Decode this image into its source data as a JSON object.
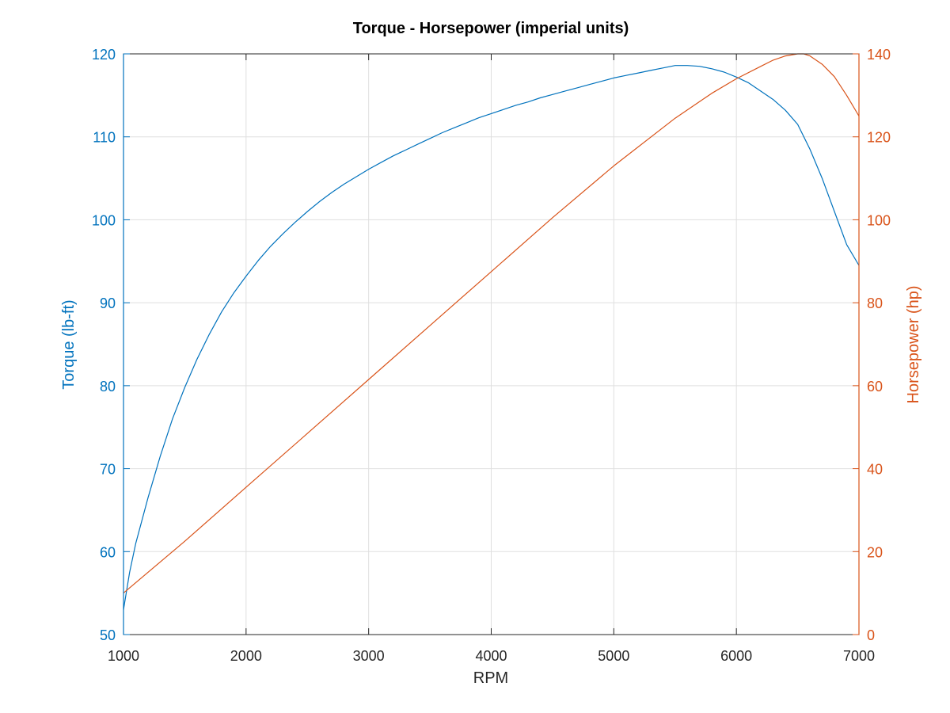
{
  "chart_data": {
    "type": "line",
    "title": "Torque - Horsepower (imperial units)",
    "xlabel": "RPM",
    "ylabel_left": "Torque (lb-ft)",
    "ylabel_right": "Horsepower (hp)",
    "xlim": [
      1000,
      7000
    ],
    "ylim_left": [
      50,
      120
    ],
    "ylim_right": [
      0,
      140
    ],
    "xticks": [
      "1000",
      "2000",
      "3000",
      "4000",
      "5000",
      "6000",
      "7000"
    ],
    "yticks_left": [
      "50",
      "60",
      "70",
      "80",
      "90",
      "100",
      "110",
      "120"
    ],
    "yticks_right": [
      "0",
      "20",
      "40",
      "60",
      "80",
      "100",
      "120",
      "140"
    ],
    "grid": true,
    "colors": {
      "torque": "#0072bd",
      "horsepower": "#d95319"
    },
    "series": [
      {
        "axis": "left",
        "x": [
          1000,
          1050,
          1100,
          1200,
          1300,
          1400,
          1500,
          1600,
          1700,
          1800,
          1900,
          2000,
          2100,
          2200,
          2300,
          2400,
          2500,
          2600,
          2700,
          2800,
          2900,
          3000,
          3100,
          3200,
          3300,
          3400,
          3500,
          3600,
          3700,
          3800,
          3900,
          4000,
          4100,
          4200,
          4300,
          4400,
          4500,
          4600,
          4700,
          4800,
          4900,
          5000,
          5100,
          5200,
          5300,
          5400,
          5500,
          5600,
          5700,
          5800,
          5900,
          6000,
          6100,
          6200,
          6300,
          6400,
          6500,
          6600,
          6700,
          6800,
          6900,
          7000
        ],
        "values": [
          53.0,
          57.5,
          61.0,
          66.5,
          71.5,
          76.0,
          79.8,
          83.2,
          86.2,
          88.9,
          91.2,
          93.2,
          95.1,
          96.8,
          98.3,
          99.7,
          101.0,
          102.2,
          103.3,
          104.3,
          105.2,
          106.1,
          106.9,
          107.7,
          108.4,
          109.1,
          109.8,
          110.5,
          111.1,
          111.7,
          112.3,
          112.8,
          113.3,
          113.8,
          114.2,
          114.7,
          115.1,
          115.5,
          115.9,
          116.3,
          116.7,
          117.1,
          117.4,
          117.7,
          118.0,
          118.3,
          118.6,
          118.6,
          118.5,
          118.2,
          117.8,
          117.2,
          116.5,
          115.5,
          114.5,
          113.2,
          111.5,
          108.5,
          105.0,
          101.0,
          97.0,
          94.5
        ]
      },
      {
        "axis": "right",
        "x": [
          1000,
          1500,
          2000,
          2500,
          3000,
          3500,
          4000,
          4500,
          5000,
          5500,
          5800,
          6000,
          6200,
          6300,
          6400,
          6500,
          6550,
          6600,
          6700,
          6800,
          6900,
          7000
        ],
        "values": [
          10.0,
          22.5,
          35.5,
          48.5,
          61.5,
          74.5,
          87.5,
          100.5,
          113.0,
          124.5,
          130.5,
          134.0,
          137.0,
          138.5,
          139.5,
          140.0,
          140.0,
          139.5,
          137.5,
          134.5,
          130.0,
          125.0
        ]
      }
    ]
  }
}
